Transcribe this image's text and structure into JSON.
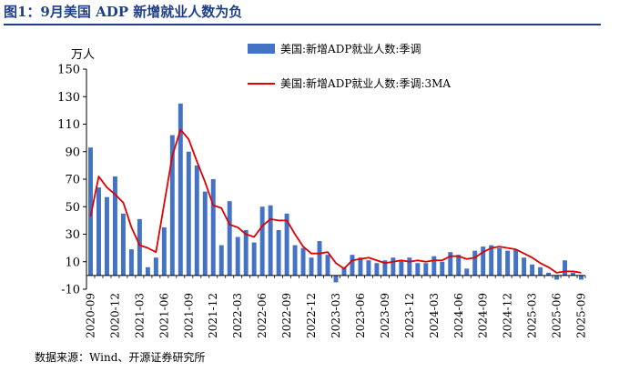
{
  "figure": {
    "title": "图1：9月美国 ADP 新增就业人数为负",
    "source": "数据来源：Wind、开源证券研究所"
  },
  "colors": {
    "title": "#1f3f86",
    "bar": "#4472c4",
    "line": "#e00000",
    "axis": "#000000"
  },
  "chart_data": {
    "type": "bar",
    "title": "",
    "unit_label": "万人",
    "ylim": [
      -10,
      150
    ],
    "yticks": [
      -10,
      10,
      30,
      50,
      70,
      90,
      110,
      130,
      150
    ],
    "grid": false,
    "legend_position": "top-right",
    "x_tick_labels": [
      "2020-09",
      "2020-12",
      "2021-03",
      "2021-06",
      "2021-09",
      "2021-12",
      "2022-03",
      "2022-06",
      "2022-09",
      "2022-12",
      "2023-03",
      "2023-06",
      "2023-09",
      "2023-12",
      "2024-03",
      "2024-06",
      "2024-09",
      "2024-12",
      "2025-03",
      "2025-06",
      "2025-09"
    ],
    "categories": [
      "2020-09",
      "2020-10",
      "2020-11",
      "2020-12",
      "2021-01",
      "2021-02",
      "2021-03",
      "2021-04",
      "2021-05",
      "2021-06",
      "2021-07",
      "2021-08",
      "2021-09",
      "2021-10",
      "2021-11",
      "2021-12",
      "2022-01",
      "2022-02",
      "2022-03",
      "2022-04",
      "2022-05",
      "2022-06",
      "2022-07",
      "2022-08",
      "2022-09",
      "2022-10",
      "2022-11",
      "2022-12",
      "2023-01",
      "2023-02",
      "2023-03",
      "2023-04",
      "2023-05",
      "2023-06",
      "2023-07",
      "2023-08",
      "2023-09",
      "2023-10",
      "2023-11",
      "2023-12",
      "2024-01",
      "2024-02",
      "2024-03",
      "2024-04",
      "2024-05",
      "2024-06",
      "2024-07",
      "2024-08",
      "2024-09",
      "2024-10",
      "2024-11",
      "2024-12",
      "2025-01",
      "2025-02",
      "2025-03",
      "2025-04",
      "2025-05",
      "2025-06",
      "2025-07",
      "2025-08",
      "2025-09"
    ],
    "series": [
      {
        "name": "美国:新增ADP就业人数:季调",
        "type": "bar",
        "values": [
          93,
          64,
          57,
          72,
          45,
          19,
          41,
          6,
          13,
          35,
          102,
          125,
          90,
          80,
          61,
          70,
          22,
          54,
          28,
          33,
          24,
          50,
          51,
          33,
          45,
          22,
          20,
          13,
          25,
          15,
          -5,
          6,
          15,
          13,
          11,
          9,
          11,
          13,
          11,
          13,
          9,
          9,
          14,
          10,
          17,
          15,
          5,
          18,
          21,
          22,
          20,
          18,
          19,
          13,
          8,
          6,
          2,
          -3,
          11,
          2,
          -3
        ]
      },
      {
        "name": "美国:新增ADP就业人数:季调:3MA",
        "type": "line",
        "values": [
          43,
          72,
          64,
          59,
          53,
          35,
          22,
          20,
          17,
          52,
          87,
          106,
          99,
          83,
          68,
          51,
          49,
          37,
          35,
          30,
          28,
          36,
          41,
          40,
          40,
          30,
          21,
          16,
          16,
          17,
          9,
          5,
          11,
          12,
          13,
          11,
          9,
          10,
          11,
          10,
          11,
          10,
          11,
          11,
          14,
          14,
          12,
          13,
          17,
          20,
          21,
          20,
          19,
          16,
          13,
          9,
          6,
          2,
          3,
          3,
          2
        ]
      }
    ]
  }
}
